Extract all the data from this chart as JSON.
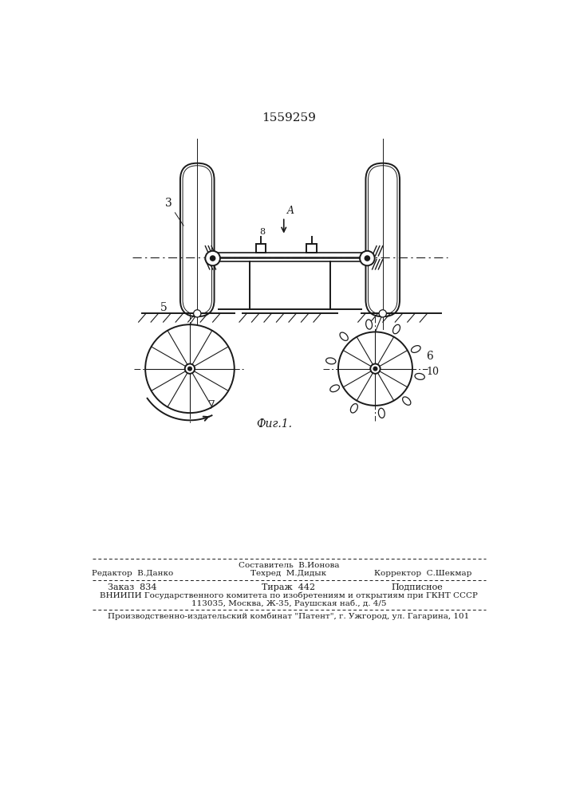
{
  "title_number": "1559259",
  "fig_label": "Фиг.1.",
  "background_color": "#ffffff",
  "line_color": "#1a1a1a",
  "footer_line0": "Составитель  В.Ионова",
  "footer_line1_left": "Редактор  В.Данко",
  "footer_line1_mid": "Техред  М.Дидык",
  "footer_line1_right": "Корректор  С.Шекмар",
  "footer_line2_left": "Заказ  834",
  "footer_line2_mid": "Тираж  442",
  "footer_line2_right": "Подписное",
  "footer_line3": "ВНИИПИ Государственного комитета по изобретениям и открытиям при ГКНТ СССР",
  "footer_line4": "113035, Москва, Ж-35, Раушская наб., д. 4/5",
  "footer_line5": "Производственно-издательский комбинат \"Патент\", г. Ужгород, ул. Гагарина, 101"
}
